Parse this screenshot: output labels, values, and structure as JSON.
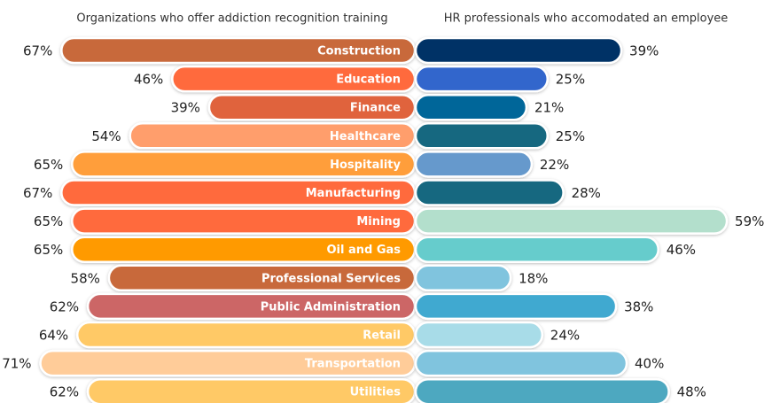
{
  "chart_data": {
    "type": "butterfly",
    "categories": [
      "Construction",
      "Education",
      "Finance",
      "Healthcare",
      "Hospitality",
      "Manufacturing",
      "Mining",
      "Oil and Gas",
      "Professional Services",
      "Public Administration",
      "Retail",
      "Transportation",
      "Utilities"
    ],
    "series": [
      {
        "name": "Organizations who offer addiction recognition training",
        "color": [
          "#c8693a",
          "#ff6a3d",
          "#e0633c",
          "#ff9e6c",
          "#ff9e3a",
          "#ff6a3d",
          "#ff6a3d",
          "#ff9a00",
          "#c8693a",
          "#cc6666",
          "#ffc966",
          "#ffcc99",
          "#ffc966"
        ],
        "values": [
          67,
          46,
          39,
          54,
          65,
          67,
          65,
          65,
          58,
          62,
          64,
          71,
          62
        ],
        "value_labels": [
          "67%",
          "46%",
          "39%",
          "54%",
          "65%",
          "67%",
          "65%",
          "65%",
          "58%",
          "62%",
          "64%",
          "71%",
          "62%"
        ]
      },
      {
        "name": "HR professionals who accomodated an employee",
        "color": [
          "#003366",
          "#3366cc",
          "#006699",
          "#156880",
          "#6699cc",
          "#156880",
          "#b3dfcc",
          "#66cccc",
          "#80c4de",
          "#3fa9d0",
          "#a8dce8",
          "#80c4de",
          "#4ea8c0"
        ],
        "values": [
          39,
          25,
          21,
          25,
          22,
          28,
          59,
          46,
          18,
          38,
          24,
          40,
          48
        ],
        "value_labels": [
          "39%",
          "25%",
          "21%",
          "25%",
          "22%",
          "28%",
          "59%",
          "46%",
          "18%",
          "38%",
          "24%",
          "40%",
          "48%"
        ]
      }
    ]
  }
}
